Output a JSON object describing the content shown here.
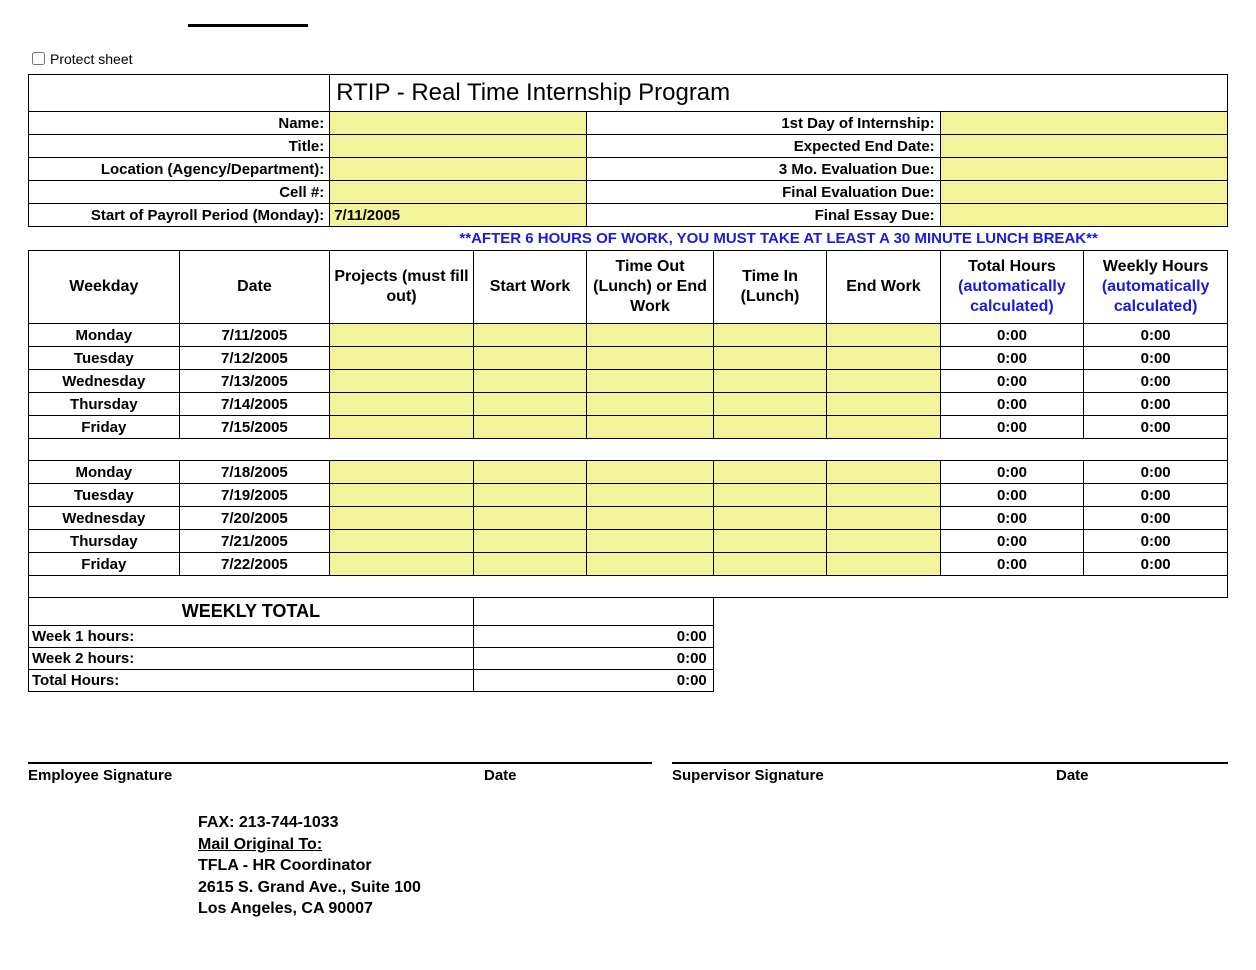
{
  "protect_label": "Protect sheet",
  "title": "RTIP - Real Time Internship Program",
  "header_rows": [
    {
      "left_label": "Name:",
      "right_label": "1st Day of Internship:"
    },
    {
      "left_label": "Title:",
      "right_label": "Expected End Date:"
    },
    {
      "left_label": "Location (Agency/Department):",
      "right_label": "3 Mo. Evaluation Due:"
    },
    {
      "left_label": "Cell #:",
      "right_label": "Final Evaluation Due:"
    }
  ],
  "payroll_label": "Start of Payroll Period (Monday):",
  "payroll_value": "7/11/2005",
  "essay_label": "Final Essay Due:",
  "notice": "**AFTER 6 HOURS OF WORK, YOU MUST TAKE AT LEAST A 30 MINUTE LUNCH BREAK**",
  "columns": {
    "weekday": "Weekday",
    "date": "Date",
    "projects": "Projects (must fill out)",
    "start": "Start Work",
    "out": "Time Out (Lunch) or End Work",
    "in": "Time In (Lunch)",
    "end": "End Work",
    "total_a": "Total Hours",
    "total_b": "(automatically calculated)",
    "weekly_a": "Weekly Hours",
    "weekly_b": "(automatically calculated)"
  },
  "week1": [
    {
      "day": "Monday",
      "date": "7/11/2005",
      "total": "0:00",
      "weekly": "0:00"
    },
    {
      "day": "Tuesday",
      "date": "7/12/2005",
      "total": "0:00",
      "weekly": "0:00"
    },
    {
      "day": "Wednesday",
      "date": "7/13/2005",
      "total": "0:00",
      "weekly": "0:00"
    },
    {
      "day": "Thursday",
      "date": "7/14/2005",
      "total": "0:00",
      "weekly": "0:00"
    },
    {
      "day": "Friday",
      "date": "7/15/2005",
      "total": "0:00",
      "weekly": "0:00"
    }
  ],
  "week2": [
    {
      "day": "Monday",
      "date": "7/18/2005",
      "total": "0:00",
      "weekly": "0:00"
    },
    {
      "day": "Tuesday",
      "date": "7/19/2005",
      "total": "0:00",
      "weekly": "0:00"
    },
    {
      "day": "Wednesday",
      "date": "7/20/2005",
      "total": "0:00",
      "weekly": "0:00"
    },
    {
      "day": "Thursday",
      "date": "7/21/2005",
      "total": "0:00",
      "weekly": "0:00"
    },
    {
      "day": "Friday",
      "date": "7/22/2005",
      "total": "0:00",
      "weekly": "0:00"
    }
  ],
  "weekly_total_title": "WEEKLY TOTAL",
  "totals": [
    {
      "label": "Week 1 hours:",
      "value": "0:00"
    },
    {
      "label": "Week 2 hours:",
      "value": "0:00"
    },
    {
      "label": "Total Hours:",
      "value": "0:00"
    }
  ],
  "signatures": {
    "emp": "Employee Signature",
    "date1": "Date",
    "sup": "Supervisor Signature",
    "date2": "Date"
  },
  "mail": {
    "fax": "FAX:  213-744-1033",
    "l1": "Mail Original To:",
    "l2": "TFLA - HR Coordinator",
    "l3": "2615 S. Grand Ave., Suite 100",
    "l4": "Los Angeles, CA 90007"
  },
  "colors": {
    "input_bg": "#f3f39a",
    "link_blue": "#1a1adf"
  }
}
